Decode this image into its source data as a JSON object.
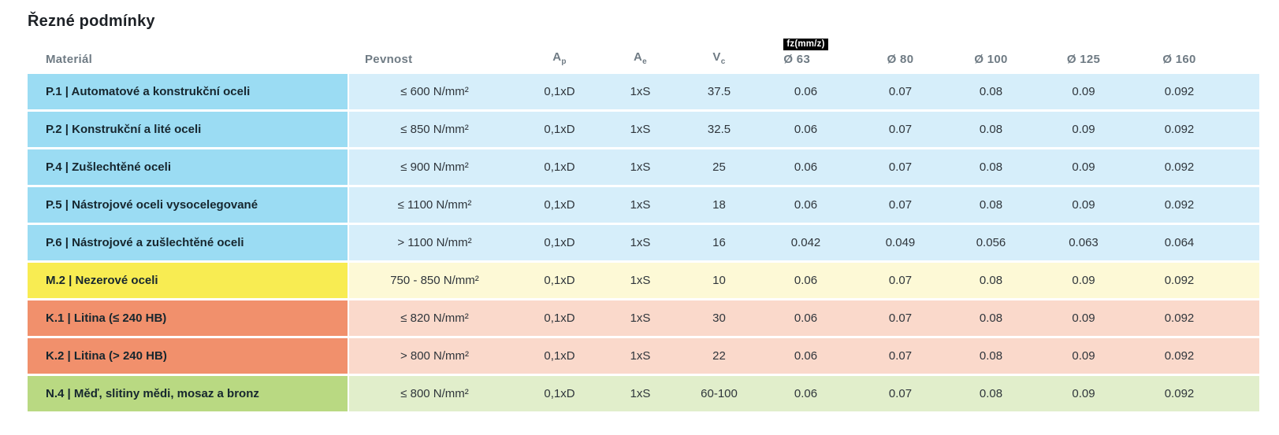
{
  "page": {
    "title": "Řezné podmínky"
  },
  "table": {
    "fz_badge": "fz(mm/z)",
    "columns": {
      "material": "Materiál",
      "pevnost": "Pevnost",
      "ap": {
        "main": "A",
        "sub": "p"
      },
      "ae": {
        "main": "A",
        "sub": "e"
      },
      "vc": {
        "main": "V",
        "sub": "c"
      },
      "d63": "Ø 63",
      "d80": "Ø 80",
      "d100": "Ø 100",
      "d125": "Ø 125",
      "d160": "Ø 160"
    },
    "colors": {
      "blue": {
        "strong": "#9BDCF3",
        "light": "#D6EEFA"
      },
      "yellow": {
        "strong": "#F8EC52",
        "light": "#FDF9D6"
      },
      "salmon": {
        "strong": "#F1906C",
        "light": "#FAD9CB"
      },
      "green": {
        "strong": "#B9D982",
        "light": "#E1EECB"
      }
    },
    "rows": [
      {
        "material": "P.1 | Automatové a konstrukční oceli",
        "pevnost": "≤ 600 N/mm²",
        "ap": "0,1xD",
        "ae": "1xS",
        "vc": "37.5",
        "fz": [
          "0.06",
          "0.07",
          "0.08",
          "0.09",
          "0.092"
        ],
        "color": "blue"
      },
      {
        "material": "P.2 | Konstrukční a lité oceli",
        "pevnost": "≤ 850 N/mm²",
        "ap": "0,1xD",
        "ae": "1xS",
        "vc": "32.5",
        "fz": [
          "0.06",
          "0.07",
          "0.08",
          "0.09",
          "0.092"
        ],
        "color": "blue"
      },
      {
        "material": "P.4 | Zušlechtěné oceli",
        "pevnost": "≤ 900 N/mm²",
        "ap": "0,1xD",
        "ae": "1xS",
        "vc": "25",
        "fz": [
          "0.06",
          "0.07",
          "0.08",
          "0.09",
          "0.092"
        ],
        "color": "blue"
      },
      {
        "material": "P.5 | Nástrojové oceli vysocelegované",
        "pevnost": "≤ 1100 N/mm²",
        "ap": "0,1xD",
        "ae": "1xS",
        "vc": "18",
        "fz": [
          "0.06",
          "0.07",
          "0.08",
          "0.09",
          "0.092"
        ],
        "color": "blue"
      },
      {
        "material": "P.6 | Nástrojové a zušlechtěné oceli",
        "pevnost": "> 1100 N/mm²",
        "ap": "0,1xD",
        "ae": "1xS",
        "vc": "16",
        "fz": [
          "0.042",
          "0.049",
          "0.056",
          "0.063",
          "0.064"
        ],
        "color": "blue"
      },
      {
        "material": "M.2 | Nezerové oceli",
        "pevnost": "750 - 850 N/mm²",
        "ap": "0,1xD",
        "ae": "1xS",
        "vc": "10",
        "fz": [
          "0.06",
          "0.07",
          "0.08",
          "0.09",
          "0.092"
        ],
        "color": "yellow"
      },
      {
        "material": "K.1 | Litina (≤ 240 HB)",
        "pevnost": "≤ 820 N/mm²",
        "ap": "0,1xD",
        "ae": "1xS",
        "vc": "30",
        "fz": [
          "0.06",
          "0.07",
          "0.08",
          "0.09",
          "0.092"
        ],
        "color": "salmon"
      },
      {
        "material": "K.2 | Litina (> 240 HB)",
        "pevnost": "> 800 N/mm²",
        "ap": "0,1xD",
        "ae": "1xS",
        "vc": "22",
        "fz": [
          "0.06",
          "0.07",
          "0.08",
          "0.09",
          "0.092"
        ],
        "color": "salmon"
      },
      {
        "material": "N.4 | Měď, slitiny mědi, mosaz a bronz",
        "pevnost": "≤ 800 N/mm²",
        "ap": "0,1xD",
        "ae": "1xS",
        "vc": "60-100",
        "fz": [
          "0.06",
          "0.07",
          "0.08",
          "0.09",
          "0.092"
        ],
        "color": "green"
      }
    ]
  }
}
